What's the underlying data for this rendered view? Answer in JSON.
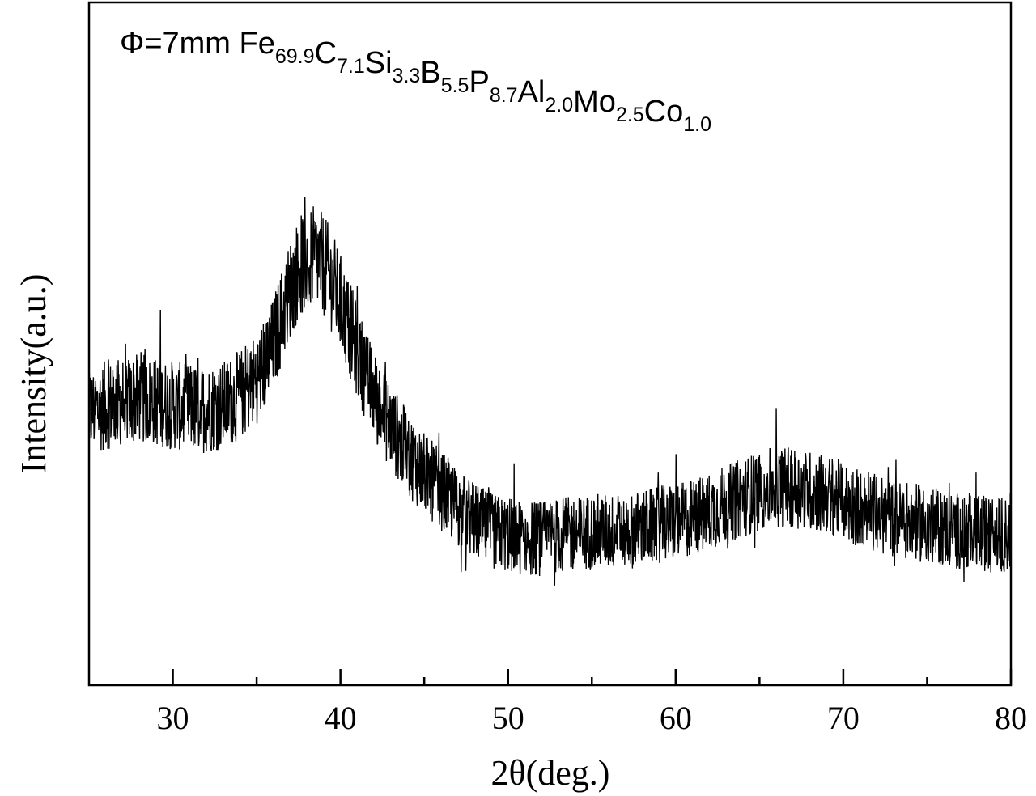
{
  "chart_data": {
    "type": "line",
    "title": {
      "prefix": "Φ=7mm ",
      "parts": [
        {
          "el": "Fe",
          "sub": "69.9"
        },
        {
          "el": "C",
          "sub": "7.1"
        },
        {
          "el": "Si",
          "sub": "3.3"
        },
        {
          "el": "B",
          "sub": "5.5"
        },
        {
          "el": "P",
          "sub": "8.7"
        },
        {
          "el": "Al",
          "sub": "2.0"
        },
        {
          "el": "Mo",
          "sub": "2.5"
        },
        {
          "el": "Co",
          "sub": "1.0"
        }
      ]
    },
    "xlabel": "2θ(deg.)",
    "ylabel": "Intensity(a.u.)",
    "xlim": [
      25,
      80
    ],
    "ylim": [
      0,
      100
    ],
    "x_ticks": [
      30,
      40,
      50,
      60,
      70,
      80
    ],
    "x_tick_labels": [
      "30",
      "40",
      "50",
      "60",
      "70",
      "80"
    ],
    "x_minor_ticks": [
      35,
      45,
      55,
      65,
      75
    ],
    "y_tick_labels": [],
    "grid": false,
    "legend": "none",
    "line_color": "#000000",
    "series": [
      {
        "x": [
          25,
          26,
          27,
          28,
          29,
          30,
          31,
          32,
          33,
          34,
          35,
          35.5,
          36,
          36.5,
          37,
          37.5,
          38,
          38.5,
          39,
          39.5,
          40,
          40.5,
          41,
          41.5,
          42,
          42.5,
          43,
          43.5,
          44,
          45,
          46,
          47,
          48,
          49,
          50,
          51,
          52,
          53,
          54,
          55,
          56,
          57,
          58,
          59,
          60,
          61,
          62,
          63,
          64,
          65,
          66,
          67,
          68,
          69,
          70,
          71,
          72,
          73,
          74,
          75,
          76,
          77,
          78,
          79,
          80
        ],
        "values": [
          40,
          41,
          41.5,
          42,
          41.5,
          41,
          40.5,
          40.5,
          41,
          42.5,
          45,
          47,
          50,
          54,
          58,
          61,
          62.5,
          62.5,
          61.5,
          59,
          56,
          52.5,
          49,
          45.5,
          42.5,
          40,
          38,
          36,
          34,
          31,
          28.5,
          26,
          24,
          22.5,
          22,
          21.5,
          21.5,
          22,
          22,
          22.5,
          22.5,
          22.5,
          23,
          23.5,
          24,
          24.5,
          25.5,
          26.5,
          27.5,
          28.5,
          29,
          29,
          28.5,
          28,
          27,
          26,
          25,
          24.5,
          24,
          23.5,
          23,
          22.5,
          22.5,
          22,
          22
        ],
        "noise_amplitude": 6
      }
    ]
  }
}
